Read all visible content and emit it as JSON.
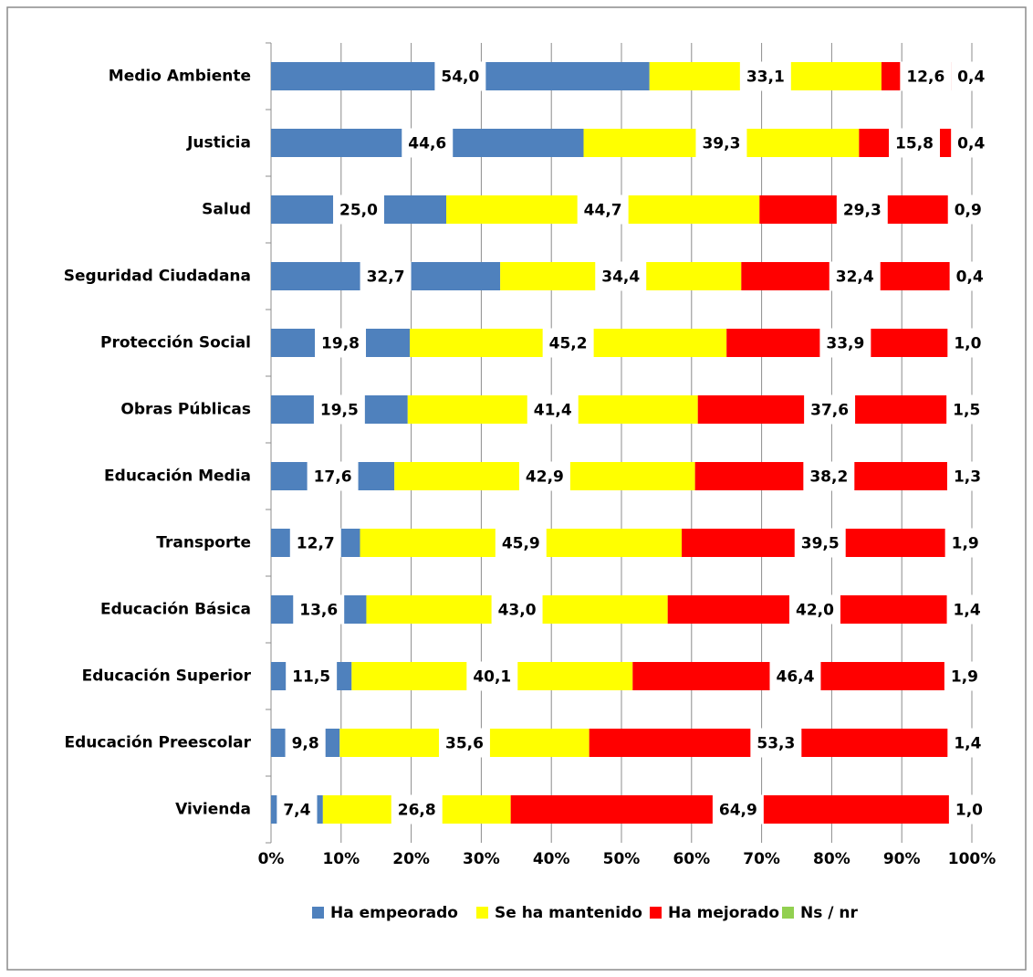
{
  "chart_data": {
    "type": "stacked_barh",
    "categories": [
      "Medio Ambiente",
      "Justicia",
      "Salud",
      "Seguridad Ciudadana",
      "Protección Social",
      "Obras Públicas",
      "Educación Media",
      "Transporte",
      "Educación Básica",
      "Educación Superior",
      "Educación Preescolar",
      "Vivienda"
    ],
    "series": [
      {
        "name": "Ha empeorado",
        "color": "#4f81bd",
        "values": [
          54.0,
          44.6,
          25.0,
          32.7,
          19.8,
          19.5,
          17.6,
          12.7,
          13.6,
          11.5,
          9.8,
          7.4
        ],
        "value_labels": [
          "54,0",
          "44,6",
          "25,0",
          "32,7",
          "19,8",
          "19,5",
          "17,6",
          "12,7",
          "13,6",
          "11,5",
          "9,8",
          "7,4"
        ]
      },
      {
        "name": "Se ha mantenido",
        "color": "#ffff00",
        "values": [
          33.1,
          39.3,
          44.7,
          34.4,
          45.2,
          41.4,
          42.9,
          45.9,
          43.0,
          40.1,
          35.6,
          26.8
        ],
        "value_labels": [
          "33,1",
          "39,3",
          "44,7",
          "34,4",
          "45,2",
          "41,4",
          "42,9",
          "45,9",
          "43,0",
          "40,1",
          "35,6",
          "26,8"
        ]
      },
      {
        "name": "Ha mejorado",
        "color": "#ff0000",
        "values": [
          12.6,
          15.8,
          29.3,
          32.4,
          33.9,
          37.6,
          38.2,
          39.5,
          42.0,
          46.4,
          53.3,
          64.9
        ],
        "value_labels": [
          "12,6",
          "15,8",
          "29,3",
          "32,4",
          "33,9",
          "37,6",
          "38,2",
          "39,5",
          "42,0",
          "46,4",
          "53,3",
          "64,9"
        ]
      },
      {
        "name": "Ns / nr",
        "color": "#92d050",
        "values": [
          0.4,
          0.4,
          0.9,
          0.4,
          1.0,
          1.5,
          1.3,
          1.9,
          1.4,
          1.9,
          1.4,
          1.0
        ],
        "value_labels": [
          "0,4",
          "0,4",
          "0,9",
          "0,4",
          "1,0",
          "1,5",
          "1,3",
          "1,9",
          "1,4",
          "1,9",
          "1,4",
          "1,0"
        ]
      }
    ],
    "xlim": [
      0,
      100
    ],
    "xticks": [
      {
        "value": 0,
        "label": "0%"
      },
      {
        "value": 10,
        "label": "10%"
      },
      {
        "value": 20,
        "label": "20%"
      },
      {
        "value": 30,
        "label": "30%"
      },
      {
        "value": 40,
        "label": "40%"
      },
      {
        "value": 50,
        "label": "50%"
      },
      {
        "value": 60,
        "label": "60%"
      },
      {
        "value": 70,
        "label": "70%"
      },
      {
        "value": 80,
        "label": "80%"
      },
      {
        "value": 90,
        "label": "90%"
      },
      {
        "value": 100,
        "label": "100%"
      }
    ],
    "grid": true,
    "legend": "bottom"
  }
}
